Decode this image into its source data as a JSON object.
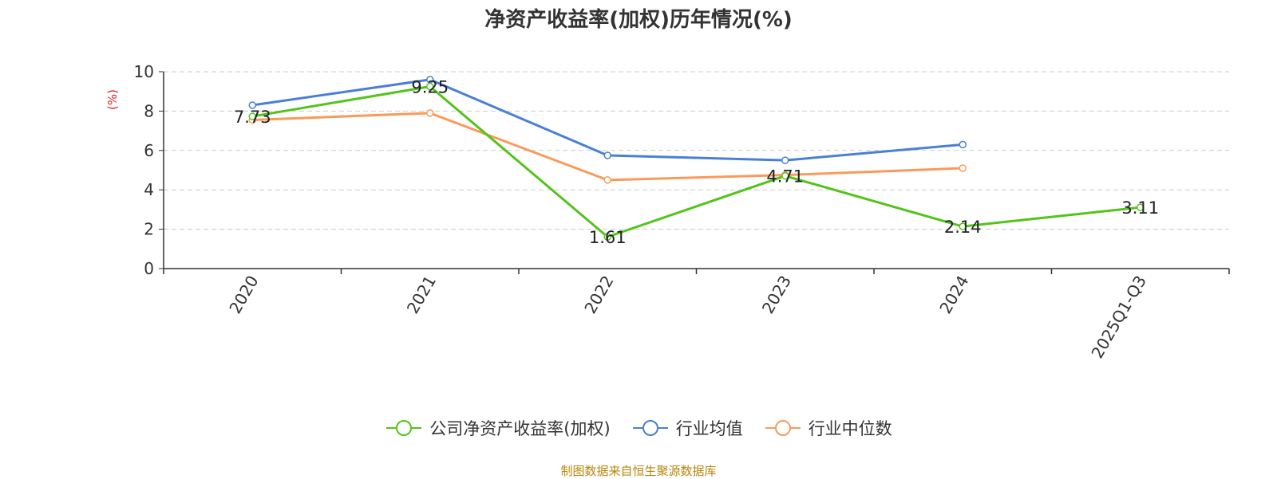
{
  "chart_data": {
    "type": "line",
    "title": "净资产收益率(加权)历年情况(%)",
    "ylabel": "(%)",
    "ylim": [
      0,
      10
    ],
    "yticks": [
      0,
      2,
      4,
      6,
      8,
      10
    ],
    "categories": [
      "2020",
      "2021",
      "2022",
      "2023",
      "2024",
      "2025Q1-Q3"
    ],
    "grid": true,
    "legend_position": "bottom",
    "series": [
      {
        "name": "公司净资产收益率(加权)",
        "color": "#52c41a",
        "values": [
          7.73,
          9.25,
          1.61,
          4.71,
          2.14,
          3.11
        ],
        "show_labels": true
      },
      {
        "name": "行业均值",
        "color": "#4a7fd6",
        "values": [
          8.3,
          9.6,
          5.75,
          5.5,
          6.3,
          null
        ],
        "show_labels": false
      },
      {
        "name": "行业中位数",
        "color": "#f99a5a",
        "values": [
          7.55,
          7.9,
          4.5,
          4.75,
          5.1,
          null
        ],
        "show_labels": false
      }
    ]
  },
  "source_note": "制图数据来自恒生聚源数据库"
}
